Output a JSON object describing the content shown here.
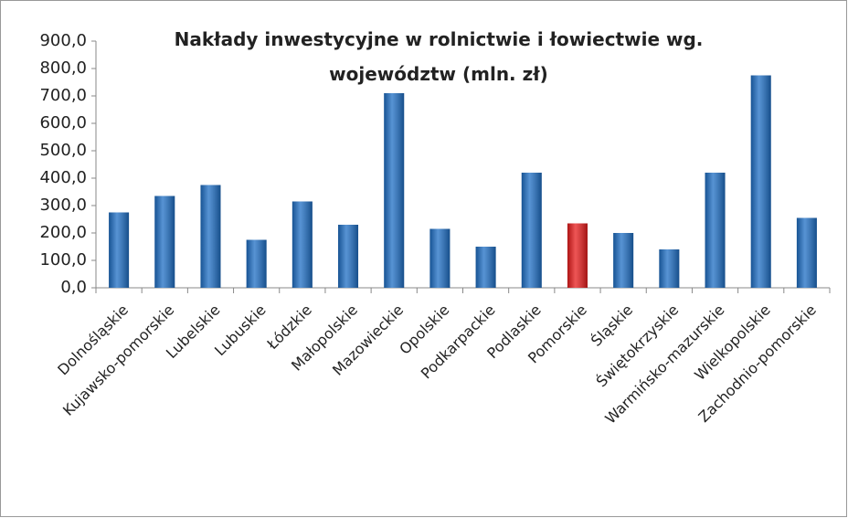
{
  "chart_data": {
    "type": "bar",
    "title": "Nakłady inwestycyjne w rolnictwie i łowiectwie wg. województw (mln. zł)",
    "categories": [
      "Dolnośląskie",
      "Kujawsko-pomorskie",
      "Lubelskie",
      "Lubuskie",
      "Łódzkie",
      "Małopolskie",
      "Mazowieckie",
      "Opolskie",
      "Podkarpackie",
      "Podlaskie",
      "Pomorskie",
      "Śląskie",
      "Świętokrzyskie",
      "Warmińsko-mazurskie",
      "Wielkopolskie",
      "Zachodnio-pomorskie"
    ],
    "values": [
      275,
      335,
      375,
      175,
      315,
      230,
      710,
      215,
      150,
      420,
      235,
      200,
      140,
      420,
      775,
      255
    ],
    "colors": [
      "#1f6fc5",
      "#1f6fc5",
      "#1f6fc5",
      "#1f6fc5",
      "#1f6fc5",
      "#1f6fc5",
      "#1f6fc5",
      "#1f6fc5",
      "#1f6fc5",
      "#1f6fc5",
      "#e81c1c",
      "#1f6fc5",
      "#1f6fc5",
      "#1f6fc5",
      "#1f6fc5",
      "#1f6fc5"
    ],
    "ylim": [
      0,
      900
    ],
    "yticks": [
      {
        "value": 0,
        "label": "0,0"
      },
      {
        "value": 100,
        "label": "100,0"
      },
      {
        "value": 200,
        "label": "200,0"
      },
      {
        "value": 300,
        "label": "300,0"
      },
      {
        "value": 400,
        "label": "400,0"
      },
      {
        "value": 500,
        "label": "500,0"
      },
      {
        "value": 600,
        "label": "600,0"
      },
      {
        "value": 700,
        "label": "700,0"
      },
      {
        "value": 800,
        "label": "800,0"
      },
      {
        "value": 900,
        "label": "900,0"
      }
    ],
    "grid": false
  }
}
